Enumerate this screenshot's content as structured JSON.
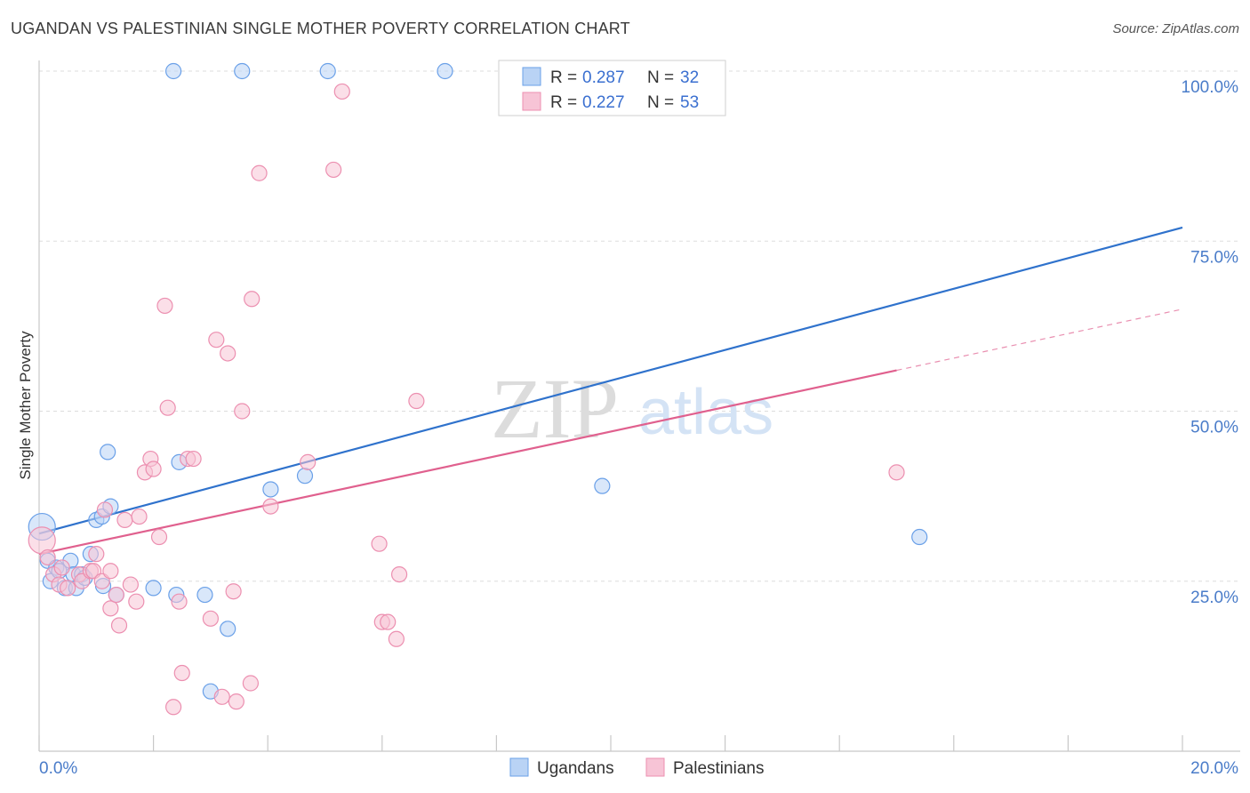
{
  "title": "UGANDAN VS PALESTINIAN SINGLE MOTHER POVERTY CORRELATION CHART",
  "source": "Source: ZipAtlas.com",
  "watermark": {
    "zip": "ZIP",
    "atlas": "atlas"
  },
  "colors": {
    "blue": "#6aa0e8",
    "blue_fill": "#b9d3f5",
    "blue_line": "#2f72cc",
    "pink": "#ec8fb0",
    "pink_fill": "#f7c4d6",
    "pink_line": "#e0608e",
    "grid": "#dddddd",
    "tick_text": "#4a7cc9"
  },
  "legend": {
    "rows": [
      {
        "r_label": "R =",
        "r_value": "0.287",
        "n_label": "N =",
        "n_value": "32",
        "series": "Ugandans"
      },
      {
        "r_label": "R =",
        "r_value": "0.227",
        "n_label": "N =",
        "n_value": "53",
        "series": "Palestinians"
      }
    ]
  },
  "chart_data": {
    "type": "scatter",
    "title": "UGANDAN VS PALESTINIAN SINGLE MOTHER POVERTY CORRELATION CHART",
    "xlabel": "",
    "ylabel": "Single Mother Poverty",
    "xlim": [
      0,
      20
    ],
    "ylim": [
      0,
      100
    ],
    "x_tick_labels": [
      {
        "x": 0,
        "label": "0.0%"
      },
      {
        "x": 20,
        "label": "20.0%"
      }
    ],
    "y_tick_labels": [
      {
        "y": 100,
        "label": "100.0%"
      },
      {
        "y": 75,
        "label": "75.0%"
      },
      {
        "y": 50,
        "label": "50.0%"
      },
      {
        "y": 25,
        "label": "25.0%"
      }
    ],
    "grid": true,
    "legend_position": "top-center",
    "series": [
      {
        "name": "Ugandans",
        "color": "#6aa0e8",
        "trend": {
          "x": [
            0,
            20
          ],
          "y": [
            32,
            77
          ]
        },
        "points": [
          {
            "x": 0.05,
            "y": 33,
            "big": true
          },
          {
            "x": 0.15,
            "y": 28
          },
          {
            "x": 0.2,
            "y": 25
          },
          {
            "x": 0.3,
            "y": 27
          },
          {
            "x": 0.35,
            "y": 26.5
          },
          {
            "x": 0.45,
            "y": 24
          },
          {
            "x": 0.55,
            "y": 28
          },
          {
            "x": 0.6,
            "y": 26
          },
          {
            "x": 0.65,
            "y": 24
          },
          {
            "x": 0.75,
            "y": 26
          },
          {
            "x": 0.8,
            "y": 25.5
          },
          {
            "x": 0.9,
            "y": 29
          },
          {
            "x": 1.0,
            "y": 34
          },
          {
            "x": 1.1,
            "y": 34.5
          },
          {
            "x": 1.2,
            "y": 44
          },
          {
            "x": 1.25,
            "y": 36
          },
          {
            "x": 1.35,
            "y": 23
          },
          {
            "x": 1.12,
            "y": 24.3
          },
          {
            "x": 2.0,
            "y": 24
          },
          {
            "x": 2.4,
            "y": 23
          },
          {
            "x": 2.45,
            "y": 42.5
          },
          {
            "x": 2.9,
            "y": 23
          },
          {
            "x": 3.0,
            "y": 8.8
          },
          {
            "x": 3.3,
            "y": 18
          },
          {
            "x": 4.05,
            "y": 38.5
          },
          {
            "x": 4.65,
            "y": 40.5
          },
          {
            "x": 9.85,
            "y": 39
          },
          {
            "x": 15.4,
            "y": 31.5
          },
          {
            "x": 2.35,
            "y": 100
          },
          {
            "x": 3.55,
            "y": 100
          },
          {
            "x": 5.05,
            "y": 100
          },
          {
            "x": 7.1,
            "y": 100
          }
        ]
      },
      {
        "name": "Palestinians",
        "color": "#ec8fb0",
        "trend": {
          "x": [
            0,
            15
          ],
          "y": [
            29,
            56
          ]
        },
        "trend_dashed": {
          "x": [
            15,
            20
          ],
          "y": [
            56,
            65
          ]
        },
        "points": [
          {
            "x": 0.05,
            "y": 31,
            "big": true
          },
          {
            "x": 0.15,
            "y": 28.5
          },
          {
            "x": 0.25,
            "y": 26
          },
          {
            "x": 0.35,
            "y": 24.5
          },
          {
            "x": 0.4,
            "y": 27
          },
          {
            "x": 0.5,
            "y": 24
          },
          {
            "x": 0.7,
            "y": 26
          },
          {
            "x": 0.75,
            "y": 25
          },
          {
            "x": 0.9,
            "y": 26.5
          },
          {
            "x": 0.95,
            "y": 26.5
          },
          {
            "x": 1.0,
            "y": 29
          },
          {
            "x": 1.1,
            "y": 25
          },
          {
            "x": 1.15,
            "y": 35.5
          },
          {
            "x": 1.25,
            "y": 21
          },
          {
            "x": 1.35,
            "y": 23
          },
          {
            "x": 1.4,
            "y": 18.5
          },
          {
            "x": 1.5,
            "y": 34
          },
          {
            "x": 1.6,
            "y": 24.5
          },
          {
            "x": 1.7,
            "y": 22
          },
          {
            "x": 1.75,
            "y": 34.5
          },
          {
            "x": 1.85,
            "y": 41
          },
          {
            "x": 1.95,
            "y": 43
          },
          {
            "x": 2.0,
            "y": 41.5
          },
          {
            "x": 2.1,
            "y": 31.5
          },
          {
            "x": 2.2,
            "y": 65.5
          },
          {
            "x": 2.25,
            "y": 50.5
          },
          {
            "x": 2.35,
            "y": 6.5
          },
          {
            "x": 2.45,
            "y": 22
          },
          {
            "x": 2.5,
            "y": 11.5
          },
          {
            "x": 2.6,
            "y": 43
          },
          {
            "x": 2.7,
            "y": 43
          },
          {
            "x": 3.0,
            "y": 19.5
          },
          {
            "x": 3.1,
            "y": 60.5
          },
          {
            "x": 3.2,
            "y": 8
          },
          {
            "x": 3.3,
            "y": 58.5
          },
          {
            "x": 3.4,
            "y": 23.5
          },
          {
            "x": 3.45,
            "y": 7.3
          },
          {
            "x": 3.55,
            "y": 50
          },
          {
            "x": 3.7,
            "y": 10
          },
          {
            "x": 3.72,
            "y": 66.5
          },
          {
            "x": 3.85,
            "y": 85
          },
          {
            "x": 4.05,
            "y": 36
          },
          {
            "x": 4.7,
            "y": 42.5
          },
          {
            "x": 5.15,
            "y": 85.5
          },
          {
            "x": 5.3,
            "y": 97
          },
          {
            "x": 5.95,
            "y": 30.5
          },
          {
            "x": 6.0,
            "y": 19
          },
          {
            "x": 6.1,
            "y": 19
          },
          {
            "x": 6.25,
            "y": 16.5
          },
          {
            "x": 6.3,
            "y": 26
          },
          {
            "x": 6.6,
            "y": 51.5
          },
          {
            "x": 15.0,
            "y": 41
          },
          {
            "x": 1.25,
            "y": 26.5
          }
        ]
      }
    ]
  }
}
